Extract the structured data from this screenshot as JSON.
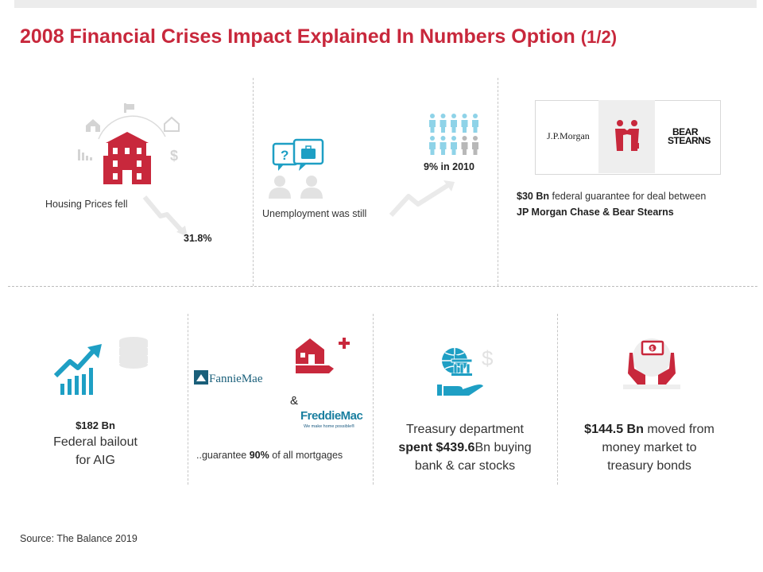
{
  "title": {
    "main": "2008 Financial Crises Impact Explained In Numbers Option",
    "part": "(1/2)"
  },
  "housing": {
    "label": "Housing Prices fell",
    "value": "31.8%"
  },
  "unemployment": {
    "label": "Unemployment was still",
    "value": "9% in 2010"
  },
  "jpm_deal": {
    "logo_left": "J.P.Morgan",
    "logo_right_line1": "BEAR",
    "logo_right_line2": "STEARNS",
    "amount": "$30 Bn",
    "text1": "federal guarantee for deal between",
    "text2": "JP Morgan Chase & Bear Stearns"
  },
  "aig": {
    "amount": "$182 Bn",
    "line1": "Federal bailout",
    "line2": "for AIG"
  },
  "mortgages": {
    "fannie": "FannieMae",
    "amp": "&",
    "freddie": "FreddieMac",
    "freddie_tag": "We make home possible®",
    "text_pre": "..guarantee",
    "percent": "90%",
    "text_post": "of all mortgages"
  },
  "treasury": {
    "line1": "Treasury department",
    "spent": "spent $439.6",
    "line2_rest": "Bn buying",
    "line3": "bank & car stocks"
  },
  "money_market": {
    "amount": "$144.5 Bn",
    "line1_rest": "moved from",
    "line2": "money market to",
    "line3": "treasury bonds"
  },
  "source": "Source: The Balance 2019",
  "colors": {
    "accent": "#c8283c",
    "teal": "#1e9fc4",
    "light_teal": "#8fd3e8",
    "grey": "#e3e3e3"
  }
}
